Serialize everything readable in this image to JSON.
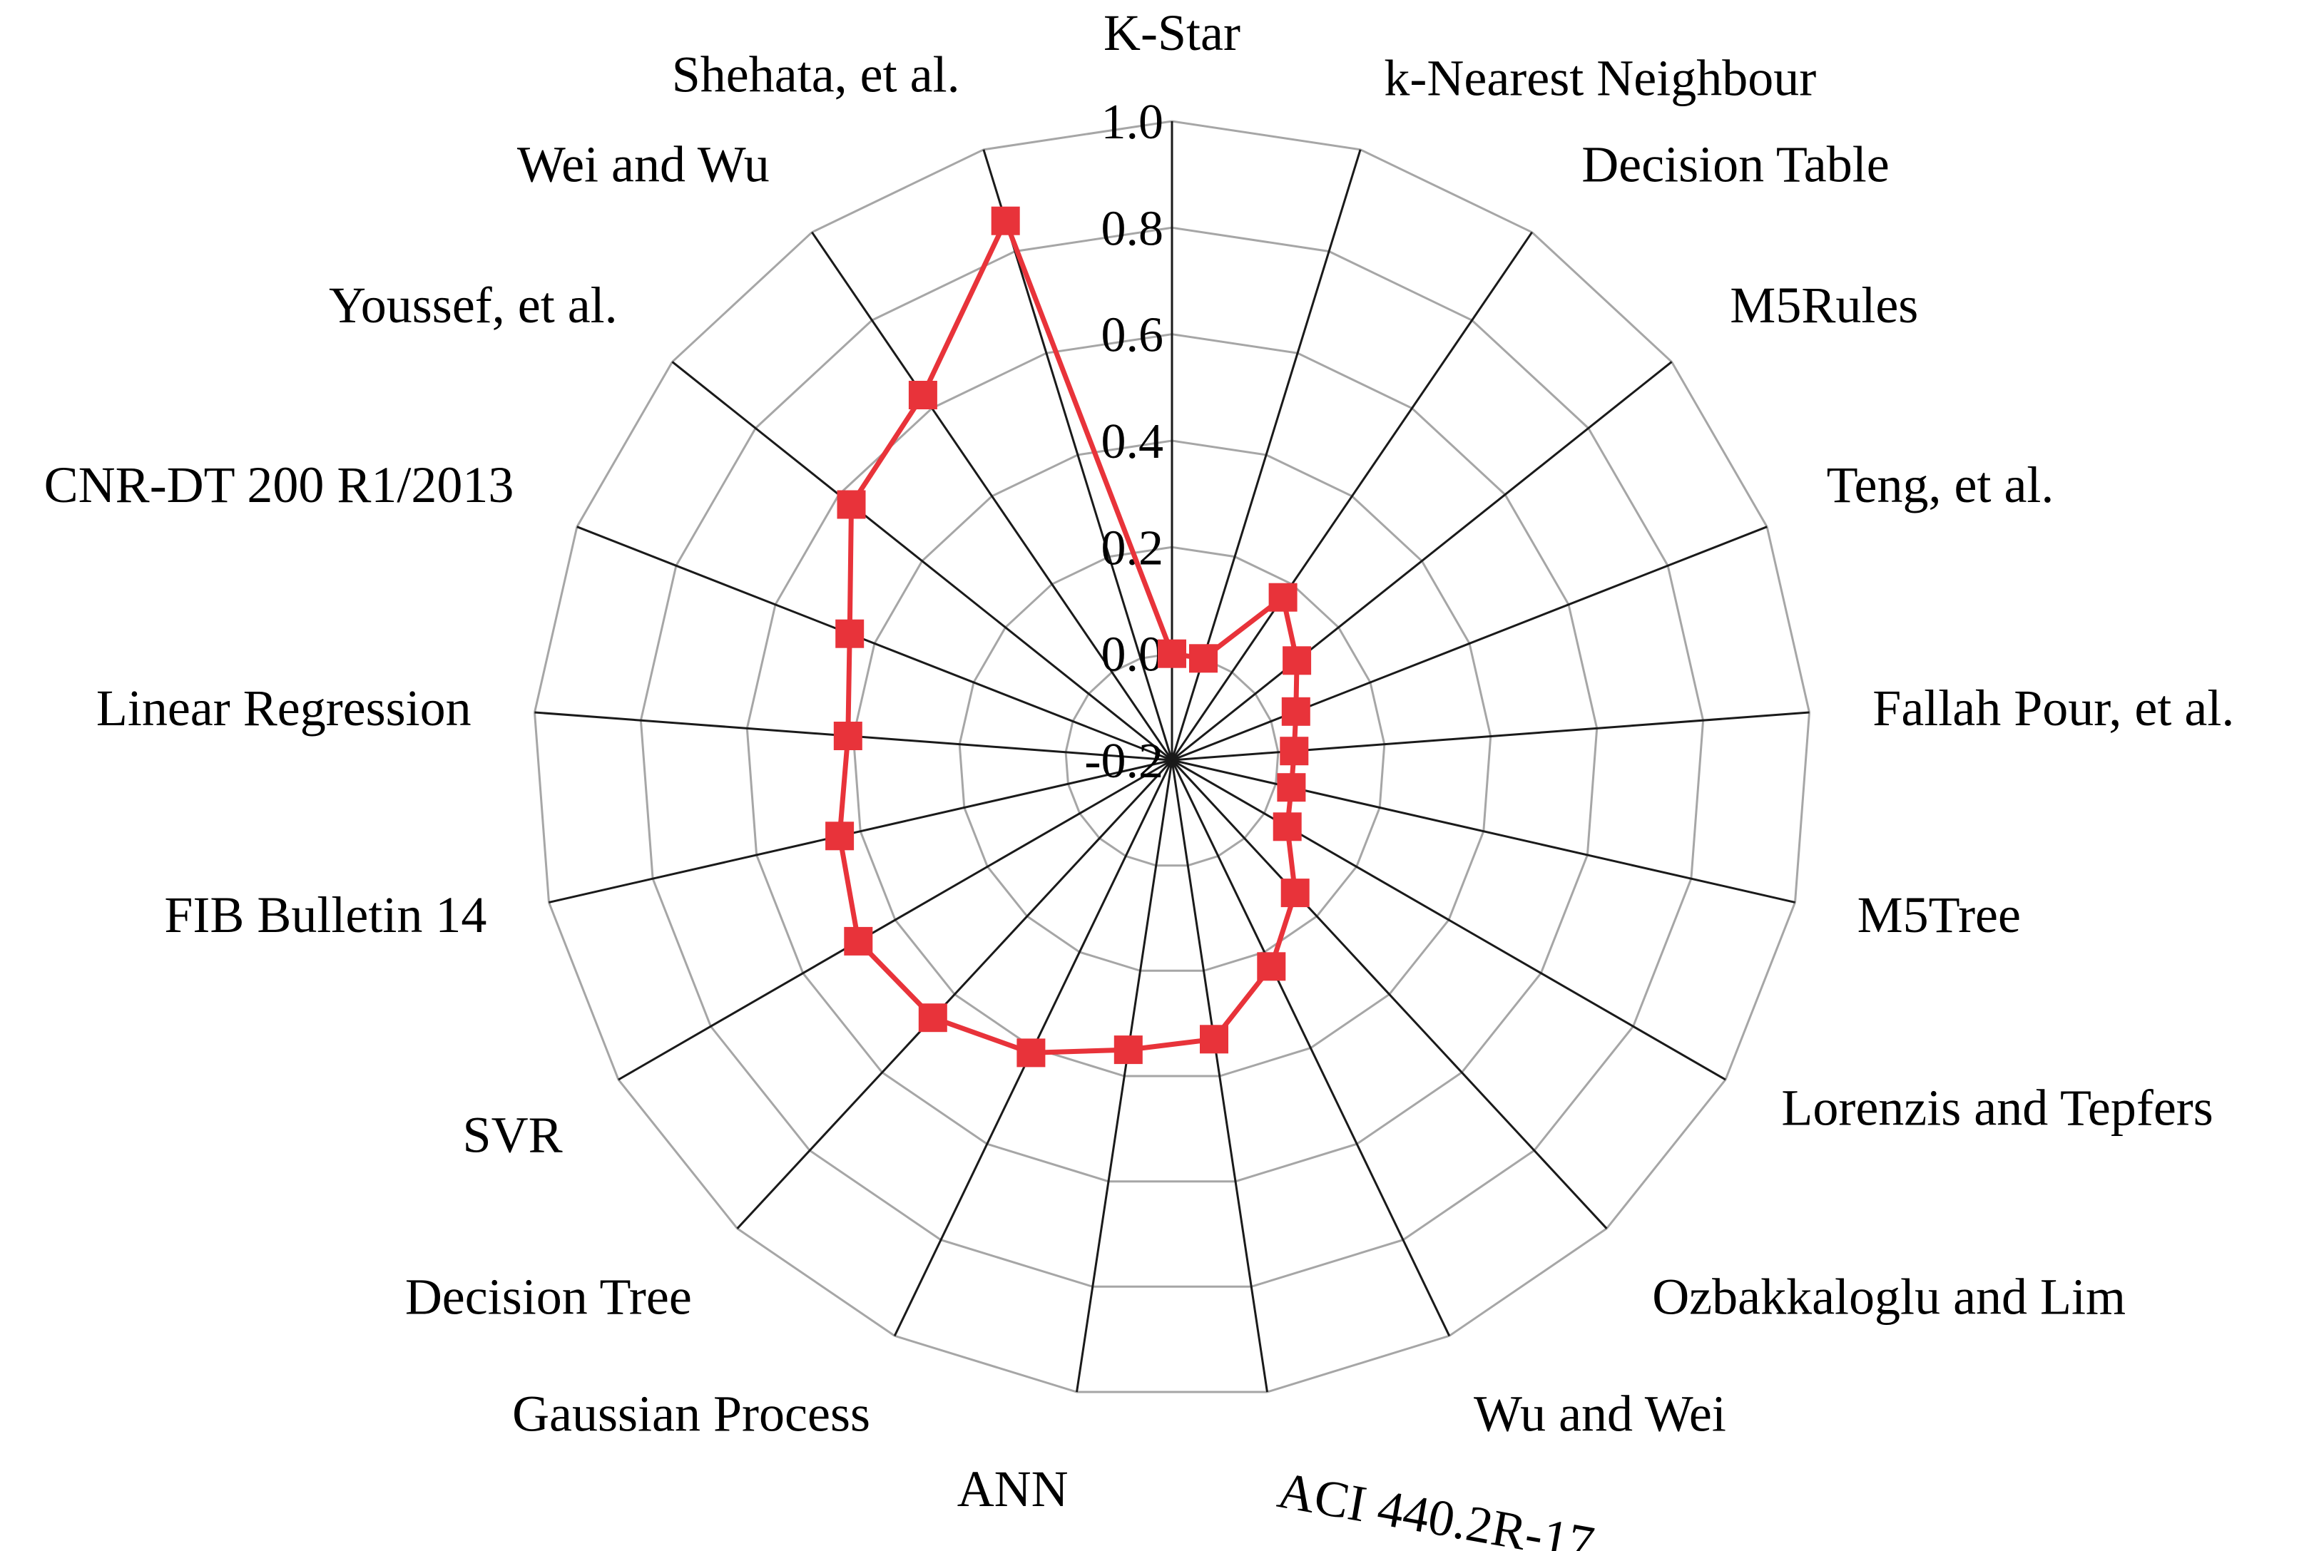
{
  "chart_data": {
    "type": "radar",
    "title": "",
    "categories": [
      "K-Star",
      "k-Nearest Neighbour",
      "Decision Table",
      "M5Rules",
      "Teng, et al.",
      "Fallah Pour, et al.",
      "M5Tree",
      "Lorenzis and Tepfers",
      "Ozbakkaloglu and Lim",
      "Wu and Wei",
      "ACI 440.2R-17",
      "ANN",
      "Gaussian Process",
      "Decision Tree",
      "SVR",
      "FIB Bulletin 14",
      "Linear Regression",
      "CNR-DT 200 R1/2013",
      "Youssef, et al.",
      "Wei and Wu",
      "Shehata, et al."
    ],
    "series": [
      {
        "values": [
          0.0,
          0.0,
          0.17,
          0.1,
          0.05,
          0.03,
          0.03,
          0.05,
          0.14,
          0.23,
          0.33,
          0.35,
          0.41,
          0.46,
          0.48,
          0.44,
          0.41,
          0.45,
          0.57,
          0.63,
          0.86
        ],
        "color": "#e8333a",
        "marker": "square"
      }
    ],
    "rlim": [
      -0.2,
      1.0
    ],
    "ticks": [
      -0.2,
      0.0,
      0.2,
      0.4,
      0.6,
      0.8,
      1.0
    ],
    "tick_labels": [
      "-0.2",
      "0.0",
      "0.2",
      "0.4",
      "0.6",
      "0.8",
      "1.0"
    ],
    "grid": true,
    "legend": "none"
  }
}
